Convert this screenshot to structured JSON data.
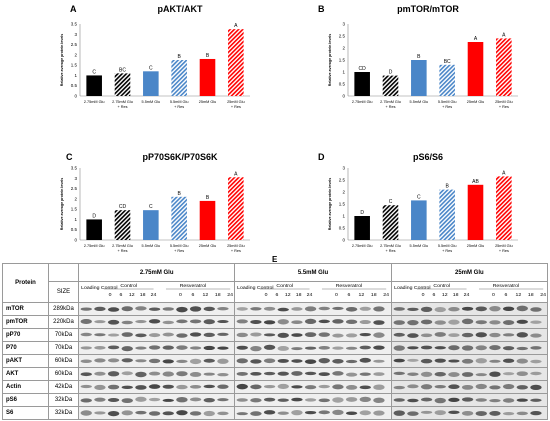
{
  "chart_data": [
    {
      "panel_letter": "A",
      "type": "bar",
      "title": "pAKT/AKT",
      "ylabel": "Relative average protein levels",
      "ylim": [
        0,
        3.5
      ],
      "yticks": [
        0,
        0.5,
        1,
        1.5,
        2,
        2.5,
        3,
        3.5
      ],
      "categories": [
        "2.75mM Glu",
        "2.75mM Glu + Res",
        "5.5mM Glu",
        "5.5mM Glu + Res",
        "25mM Glu",
        "25mM Glu + Res"
      ],
      "values": [
        1.0,
        1.1,
        1.2,
        1.75,
        1.8,
        3.25
      ],
      "letters": [
        "C",
        "BC",
        "C",
        "B",
        "B",
        "A"
      ]
    },
    {
      "panel_letter": "B",
      "type": "bar",
      "title": "pmTOR/mTOR",
      "ylabel": "Relative average protein levels",
      "ylim": [
        0,
        3
      ],
      "yticks": [
        0,
        0.5,
        1,
        1.5,
        2,
        2.5,
        3
      ],
      "categories": [
        "2.75mM Glu",
        "2.75mM Glu + Res",
        "5.5mM Glu",
        "5.5mM Glu + Res",
        "25mM Glu",
        "25mM Glu + Res"
      ],
      "values": [
        1.0,
        0.85,
        1.5,
        1.3,
        2.25,
        2.4
      ],
      "letters": [
        "CD",
        "D",
        "B",
        "BC",
        "A",
        "A"
      ]
    },
    {
      "panel_letter": "C",
      "type": "bar",
      "title": "pP70S6K/P70S6K",
      "ylabel": "Relative average protein levels",
      "ylim": [
        0,
        3.5
      ],
      "yticks": [
        0,
        0.5,
        1,
        1.5,
        2,
        2.5,
        3,
        3.5
      ],
      "categories": [
        "2.75mM Glu",
        "2.75mM Glu + Res",
        "5.5mM Glu",
        "5.5mM Glu + Res",
        "25mM Glu",
        "25mM Glu + Res"
      ],
      "values": [
        1.0,
        1.45,
        1.45,
        2.1,
        1.9,
        3.05
      ],
      "letters": [
        "D",
        "CD",
        "C",
        "B",
        "B",
        "A"
      ]
    },
    {
      "panel_letter": "D",
      "type": "bar",
      "title": "pS6/S6",
      "ylabel": "Relative average protein levels",
      "ylim": [
        0,
        3
      ],
      "yticks": [
        0,
        0.5,
        1,
        1.5,
        2,
        2.5,
        3
      ],
      "categories": [
        "2.75mM Glu",
        "2.75mM Glu + Res",
        "5.5mM Glu",
        "5.5mM Glu + Res",
        "25mM Glu",
        "25mM Glu + Res"
      ],
      "values": [
        1.0,
        1.45,
        1.65,
        2.1,
        2.3,
        2.65
      ],
      "letters": [
        "D",
        "C",
        "C",
        "B",
        "AB",
        "A"
      ]
    }
  ],
  "bar_styles": [
    {
      "fill": "#000000",
      "pattern": "solid"
    },
    {
      "fill": "#000000",
      "pattern": "hatch"
    },
    {
      "fill": "#4a86c8",
      "pattern": "solid"
    },
    {
      "fill": "#4a86c8",
      "pattern": "hatch"
    },
    {
      "fill": "#ff0000",
      "pattern": "solid"
    },
    {
      "fill": "#ff0000",
      "pattern": "hatch"
    }
  ],
  "blot": {
    "panel_letter": "E",
    "header_protein": "Protein",
    "header_size": "SIZE",
    "groups": [
      "2.75mM Glu",
      "5.5mM Glu",
      "25mM Glu"
    ],
    "sub_loading": "Loading Control",
    "sub_control": "Control",
    "sub_resveratrol": "Resveratrol",
    "timepoints": [
      "0",
      "6",
      "12",
      "18",
      "24",
      "0",
      "6",
      "12",
      "18",
      "24"
    ],
    "proteins": [
      {
        "name": "mTOR",
        "size": "289kDa"
      },
      {
        "name": "pmTOR",
        "size": "220kDa"
      },
      {
        "name": "pP70",
        "size": "70kDa"
      },
      {
        "name": "P70",
        "size": "70kDa"
      },
      {
        "name": "pAKT",
        "size": "60kDa"
      },
      {
        "name": "AKT",
        "size": "60kDa"
      },
      {
        "name": "Actin",
        "size": "42kDa"
      },
      {
        "name": "pS6",
        "size": "32kDa"
      },
      {
        "name": "S6",
        "size": "32kDa"
      }
    ]
  }
}
